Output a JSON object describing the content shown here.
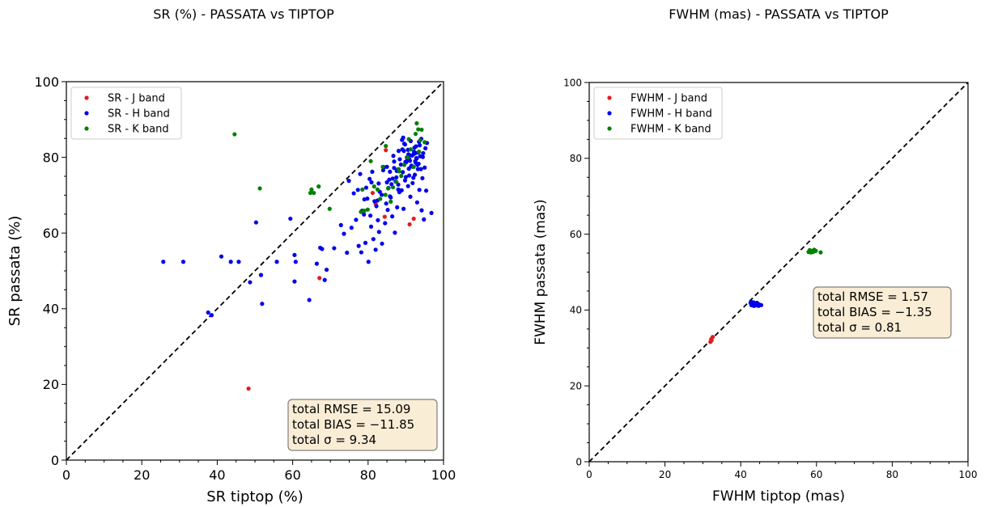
{
  "chart_data": [
    {
      "type": "scatter",
      "title": "SR (%) -  PASSATA vs TIPTOP",
      "xlabel": "SR tiptop (%)",
      "ylabel": "SR passata (%)",
      "xlim": [
        0,
        100
      ],
      "ylim": [
        0,
        100
      ],
      "xticks": [
        "0",
        "20",
        "40",
        "60",
        "80",
        "100"
      ],
      "yticks": [
        "0",
        "20",
        "40",
        "60",
        "80",
        "100"
      ],
      "grid": false,
      "legend_position": "top-left",
      "identity_line": true,
      "stats_box_position": "bottom-right",
      "stats": [
        "total RMSE = 15.09",
        "total BIAS = −11.85",
        "total σ = 9.34"
      ],
      "series": [
        {
          "name": "SR - J band",
          "color": "#e41a1c",
          "x": [
            48.3,
            67.1,
            81.2,
            84.4,
            91.0,
            92.1,
            84.7,
            82.0
          ],
          "y": [
            18.9,
            48.1,
            70.6,
            64.3,
            62.3,
            63.8,
            81.9,
            67.7
          ]
        },
        {
          "name": "SR - H band",
          "color": "#0000ee",
          "x": [
            25.7,
            31.0,
            37.6,
            38.5,
            41.1,
            43.6,
            45.7,
            48.7,
            50.3,
            51.6,
            51.9,
            55.8,
            59.4,
            60.5,
            60.8,
            60.5,
            64.4,
            66.4,
            67.3,
            67.8,
            69.0,
            68.5,
            71.0,
            72.8,
            73.6,
            74.4,
            75.6,
            76.8,
            77.5,
            78.2,
            78.9,
            79.3,
            80.1,
            80.8,
            81.4,
            82.0,
            82.5,
            82.9,
            83.7,
            84.5,
            85.2,
            85.8,
            86.4,
            87.1,
            87.7,
            88.3,
            88.9,
            89.4,
            90.0,
            90.6,
            91.2,
            91.8,
            92.4,
            93.0,
            93.6,
            94.2,
            94.8,
            95.4,
            96.8,
            74.9,
            76.2,
            77.9,
            79.5,
            80.4,
            81.7,
            83.1,
            84.0,
            85.0,
            86.0,
            86.9,
            87.5,
            88.0,
            88.7,
            89.2,
            89.8,
            90.4,
            90.9,
            91.5,
            92.0,
            92.6,
            93.2,
            93.8,
            94.4,
            95.0,
            78.4,
            79.8,
            81.1,
            82.8,
            84.2,
            85.6,
            86.7,
            87.6,
            88.4,
            89.1,
            89.9,
            90.7,
            91.4,
            92.2,
            92.9,
            93.7,
            94.5,
            95.2,
            80.6,
            82.2,
            83.6,
            85.4,
            86.9,
            88.1,
            89.6,
            91.0,
            92.3,
            93.5,
            94.6,
            95.6,
            77.3,
            79.0,
            80.9,
            82.6,
            84.8,
            86.2,
            87.9,
            89.3,
            90.8,
            92.5,
            94.1,
            89.0,
            89.8,
            90.6,
            91.3,
            92.1,
            92.8,
            93.4,
            94.0,
            89.5,
            90.3,
            91.1,
            91.9,
            92.7,
            93.3,
            90.1,
            90.9,
            91.7,
            92.5,
            93.1,
            85.0,
            85.8,
            86.5,
            87.3,
            88.0
          ],
          "y": [
            52.4,
            52.4,
            39.0,
            38.3,
            53.8,
            52.4,
            52.4,
            47.0,
            62.8,
            48.9,
            41.3,
            52.4,
            63.8,
            54.2,
            52.4,
            47.2,
            42.3,
            51.9,
            56.1,
            55.8,
            50.3,
            47.6,
            56.0,
            62.1,
            59.8,
            54.8,
            61.4,
            63.5,
            56.6,
            54.9,
            64.9,
            57.4,
            52.4,
            61.7,
            58.4,
            55.6,
            68.6,
            60.3,
            57.2,
            62.6,
            66.1,
            69.7,
            64.4,
            60.1,
            66.8,
            70.8,
            71.3,
            66.4,
            74.8,
            72.4,
            69.6,
            73.2,
            75.4,
            68.1,
            71.4,
            66.0,
            63.6,
            71.2,
            65.3,
            73.8,
            70.5,
            75.6,
            72.0,
            74.3,
            68.4,
            70.9,
            76.6,
            73.4,
            69.4,
            77.2,
            74.7,
            71.5,
            78.1,
            76.1,
            73.9,
            79.3,
            75.2,
            77.8,
            74.6,
            78.6,
            76.9,
            80.3,
            74.5,
            77.3,
            65.9,
            69.1,
            76.2,
            73.1,
            77.4,
            74.1,
            80.4,
            76.4,
            79.5,
            82.1,
            78.8,
            80.8,
            77.6,
            81.5,
            79.7,
            83.2,
            80.1,
            82.4,
            64.6,
            67.1,
            70.1,
            71.9,
            78.9,
            81.7,
            83.6,
            80.6,
            82.6,
            84.1,
            81.1,
            83.8,
            71.4,
            68.9,
            73.4,
            63.4,
            67.8,
            72.9,
            76.8,
            85.2,
            77.0,
            79.0,
            84.9,
            84.6,
            83.4,
            82.0,
            84.3,
            80.9,
            79.8,
            78.3,
            76.9,
            81.7,
            80.0,
            79.1,
            77.5,
            82.9,
            81.3,
            78.7,
            79.6,
            80.5,
            81.1,
            78.0,
            77.5,
            76.2,
            74.4,
            73.6,
            72.8
          ]
        },
        {
          "name": "SR - K band",
          "color": "#008000",
          "x": [
            44.6,
            51.3,
            64.7,
            65.0,
            65.6,
            66.9,
            69.8,
            78.1,
            78.5,
            79.0,
            79.9,
            80.7,
            81.6,
            82.5,
            83.2,
            83.9,
            84.6,
            85.3,
            86.0,
            86.6,
            87.5,
            88.2,
            88.8,
            89.6,
            90.5,
            91.3,
            92.1,
            92.6,
            93.3,
            93.8,
            94.2,
            95.0,
            92.9,
            93.5,
            90.8,
            84.7,
            88.1
          ],
          "y": [
            86.1,
            71.8,
            70.6,
            71.5,
            70.6,
            72.3,
            66.4,
            65.6,
            71.5,
            65.9,
            66.2,
            79.0,
            72.3,
            71.5,
            69.0,
            77.5,
            70.1,
            71.8,
            68.3,
            72.1,
            73.5,
            76.3,
            75.1,
            78.0,
            80.0,
            82.1,
            77.5,
            86.2,
            87.4,
            84.5,
            87.3,
            84.0,
            89.0,
            81.5,
            84.8,
            83.0,
            76.9
          ]
        }
      ]
    },
    {
      "type": "scatter",
      "title": "FWHM (mas) - PASSATA vs TIPTOP",
      "xlabel": "FWHM tiptop (mas)",
      "ylabel": "FWHM passata (mas)",
      "xlim": [
        0,
        100
      ],
      "ylim": [
        0,
        100
      ],
      "xticks": [
        "0",
        "20",
        "40",
        "60",
        "80",
        "100"
      ],
      "yticks": [
        "0",
        "20",
        "40",
        "60",
        "80",
        "100"
      ],
      "grid": false,
      "legend_position": "top-left",
      "identity_line": true,
      "stats_box_position": "middle-right",
      "stats": [
        "total RMSE = 1.57",
        "total BIAS = −1.35",
        "total σ = 0.81"
      ],
      "series": [
        {
          "name": "FWHM - J band",
          "color": "#e41a1c",
          "x": [
            32.0,
            32.3,
            32.6,
            32.2
          ],
          "y": [
            31.6,
            32.0,
            32.9,
            32.3
          ]
        },
        {
          "name": "FWHM - H band",
          "color": "#0000ee",
          "x": [
            42.6,
            42.9,
            43.1,
            43.4,
            43.6,
            43.8,
            44.1,
            44.4,
            44.8,
            45.4,
            42.8,
            43.2,
            43.5,
            43.9,
            44.3,
            44.7,
            43.0,
            43.3,
            43.7,
            44.0
          ],
          "y": [
            41.9,
            42.1,
            41.4,
            42.0,
            41.6,
            41.2,
            41.7,
            41.3,
            41.5,
            41.3,
            41.3,
            41.8,
            41.1,
            41.4,
            41.9,
            41.1,
            41.6,
            41.2,
            41.8,
            41.5
          ]
        },
        {
          "name": "FWHM - K band",
          "color": "#008000",
          "x": [
            57.9,
            58.2,
            58.5,
            58.8,
            59.1,
            59.4,
            59.8,
            61.1,
            58.4,
            58.9
          ],
          "y": [
            55.3,
            55.8,
            55.2,
            55.6,
            55.3,
            55.9,
            55.6,
            55.2,
            55.5,
            55.4
          ]
        }
      ]
    }
  ]
}
